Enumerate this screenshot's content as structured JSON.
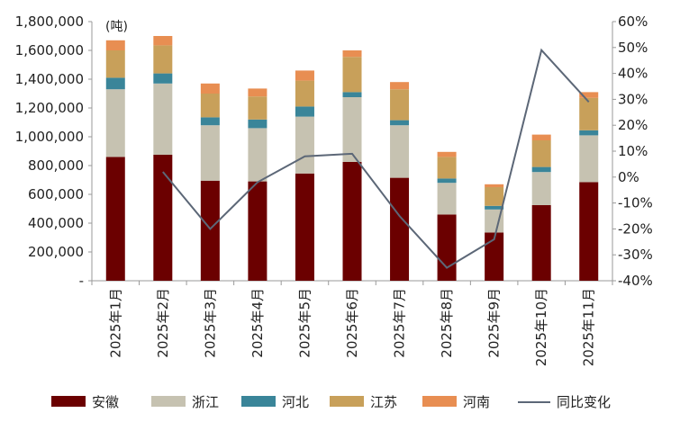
{
  "chart_data": {
    "type": "bar",
    "stacked": true,
    "unit_label": "(吨)",
    "categories": [
      "2025年1月",
      "2025年2月",
      "2025年3月",
      "2025年4月",
      "2025年5月",
      "2025年6月",
      "2025年7月",
      "2025年8月",
      "2025年9月",
      "2025年10月",
      "2025年11月"
    ],
    "series": [
      {
        "name": "安徽",
        "color": "#6b0000",
        "values": [
          860000,
          875000,
          695000,
          690000,
          745000,
          825000,
          715000,
          460000,
          335000,
          525000,
          685000
        ]
      },
      {
        "name": "浙江",
        "color": "#c6c2b1",
        "values": [
          470000,
          495000,
          385000,
          370000,
          395000,
          450000,
          365000,
          220000,
          160000,
          230000,
          325000
        ]
      },
      {
        "name": "河北",
        "color": "#3a8599",
        "values": [
          80000,
          70000,
          55000,
          60000,
          70000,
          35000,
          35000,
          30000,
          25000,
          35000,
          35000
        ]
      },
      {
        "name": "江苏",
        "color": "#c8a05a",
        "values": [
          190000,
          195000,
          165000,
          160000,
          180000,
          245000,
          215000,
          150000,
          130000,
          185000,
          225000
        ]
      },
      {
        "name": "河南",
        "color": "#e88e52",
        "values": [
          70000,
          65000,
          70000,
          55000,
          70000,
          45000,
          50000,
          35000,
          20000,
          40000,
          40000
        ]
      }
    ],
    "line": {
      "name": "同比变化",
      "color": "#5c6777",
      "axis": "right",
      "values": [
        null,
        0.02,
        -0.2,
        -0.02,
        0.08,
        0.09,
        -0.15,
        -0.35,
        -0.24,
        0.49,
        0.29
      ]
    },
    "left_axis": {
      "ylim": [
        0,
        1800000
      ],
      "ticks": [
        0,
        200000,
        400000,
        600000,
        800000,
        1000000,
        1200000,
        1400000,
        1600000,
        1800000
      ],
      "tick_labels": [
        "-",
        "200,000",
        "400,000",
        "600,000",
        "800,000",
        "1,000,000",
        "1,200,000",
        "1,400,000",
        "1,600,000",
        "1,800,000"
      ]
    },
    "right_axis": {
      "ylim": [
        -0.4,
        0.6
      ],
      "ticks": [
        -0.4,
        -0.3,
        -0.2,
        -0.1,
        0,
        0.1,
        0.2,
        0.3,
        0.4,
        0.5,
        0.6
      ],
      "tick_labels": [
        "-40%",
        "-30%",
        "-20%",
        "-10%",
        "0%",
        "10%",
        "20%",
        "30%",
        "40%",
        "50%",
        "60%"
      ]
    },
    "legend": [
      "安徽",
      "浙江",
      "河北",
      "江苏",
      "河南",
      "同比变化"
    ],
    "legend_position": "bottom",
    "grid": false
  }
}
